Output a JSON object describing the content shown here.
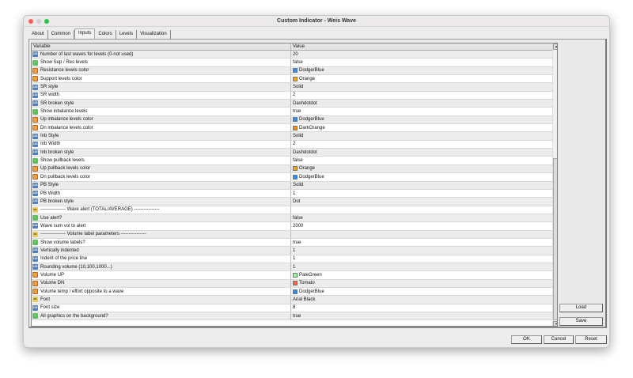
{
  "window": {
    "title": "Custom Indicator - Weis Wave"
  },
  "tabs": [
    {
      "label": "About"
    },
    {
      "label": "Common"
    },
    {
      "label": "Inputs",
      "active": true
    },
    {
      "label": "Colors"
    },
    {
      "label": "Levels"
    },
    {
      "label": "Visualization"
    }
  ],
  "table": {
    "headers": [
      "Variable",
      "Value"
    ],
    "rows": [
      {
        "type": "int",
        "name": "Number of last waves for levels (0-not used)",
        "value": "20"
      },
      {
        "type": "bool",
        "name": "Show Sup / Res levels",
        "value": "false"
      },
      {
        "type": "color",
        "name": "Resistance levels color",
        "value": "DodgerBlue",
        "swatch": "#1e90ff"
      },
      {
        "type": "color",
        "name": "Support levels color",
        "value": "Orange",
        "swatch": "#ffa500"
      },
      {
        "type": "int",
        "name": "SR style",
        "value": "Solid"
      },
      {
        "type": "int",
        "name": "SR width",
        "value": "2"
      },
      {
        "type": "int",
        "name": "SR broken style",
        "value": "Dashdotdot"
      },
      {
        "type": "bool",
        "name": "Show inbalance levels",
        "value": "true"
      },
      {
        "type": "color",
        "name": "Up inbalance levels color",
        "value": "DodgerBlue",
        "swatch": "#1e90ff"
      },
      {
        "type": "color",
        "name": "Dn inbalance levels color",
        "value": "DarkOrange",
        "swatch": "#ff8c00"
      },
      {
        "type": "int",
        "name": "Inb Style",
        "value": "Solid"
      },
      {
        "type": "int",
        "name": "Inb Width",
        "value": "2"
      },
      {
        "type": "int",
        "name": "Inb broken style",
        "value": "Dashdotdot"
      },
      {
        "type": "bool",
        "name": "Show pullback levels",
        "value": "false"
      },
      {
        "type": "color",
        "name": "Up pullback levels color",
        "value": "Orange",
        "swatch": "#ffa500"
      },
      {
        "type": "color",
        "name": "Dn pullback levels color",
        "value": "DodgerBlue",
        "swatch": "#1e90ff"
      },
      {
        "type": "int",
        "name": "PB Style",
        "value": "Solid"
      },
      {
        "type": "int",
        "name": "PB Width",
        "value": "1"
      },
      {
        "type": "int",
        "name": "PB broken style",
        "value": "Dot"
      },
      {
        "type": "str",
        "name": "---------------- Wave alert (TOTAL/AVERAGE) ----------------",
        "value": ""
      },
      {
        "type": "bool",
        "name": "Use alert?",
        "value": "false"
      },
      {
        "type": "int",
        "name": "Wave sum vol to alert",
        "value": "2000"
      },
      {
        "type": "str",
        "name": "---------------- Volume label parameters ----------------",
        "value": ""
      },
      {
        "type": "bool",
        "name": "Show volume labels?",
        "value": "true"
      },
      {
        "type": "int",
        "name": "Vertically indented",
        "value": "1"
      },
      {
        "type": "int",
        "name": "Indent of the price line",
        "value": "1"
      },
      {
        "type": "int",
        "name": "Rounding volume (10,100,1000...)",
        "value": "1"
      },
      {
        "type": "color",
        "name": "Volume UP",
        "value": "PaleGreen",
        "swatch": "#98fb98"
      },
      {
        "type": "color",
        "name": "Volume DN",
        "value": "Tomato",
        "swatch": "#ff6347"
      },
      {
        "type": "color",
        "name": "Volume temp / effort opposite to a wave",
        "value": "DodgerBlue",
        "swatch": "#1e90ff"
      },
      {
        "type": "str",
        "name": "Font",
        "value": "Arial Black"
      },
      {
        "type": "int",
        "name": "Font size",
        "value": "8"
      },
      {
        "type": "bool",
        "name": "All graphics on the background?",
        "value": "true"
      }
    ]
  },
  "icons": {
    "int": "123",
    "bool": "~",
    "color": "▭",
    "str": "ab"
  },
  "buttons": {
    "load": "Load",
    "save": "Save",
    "ok": "OK",
    "cancel": "Cancel",
    "reset": "Reset"
  }
}
